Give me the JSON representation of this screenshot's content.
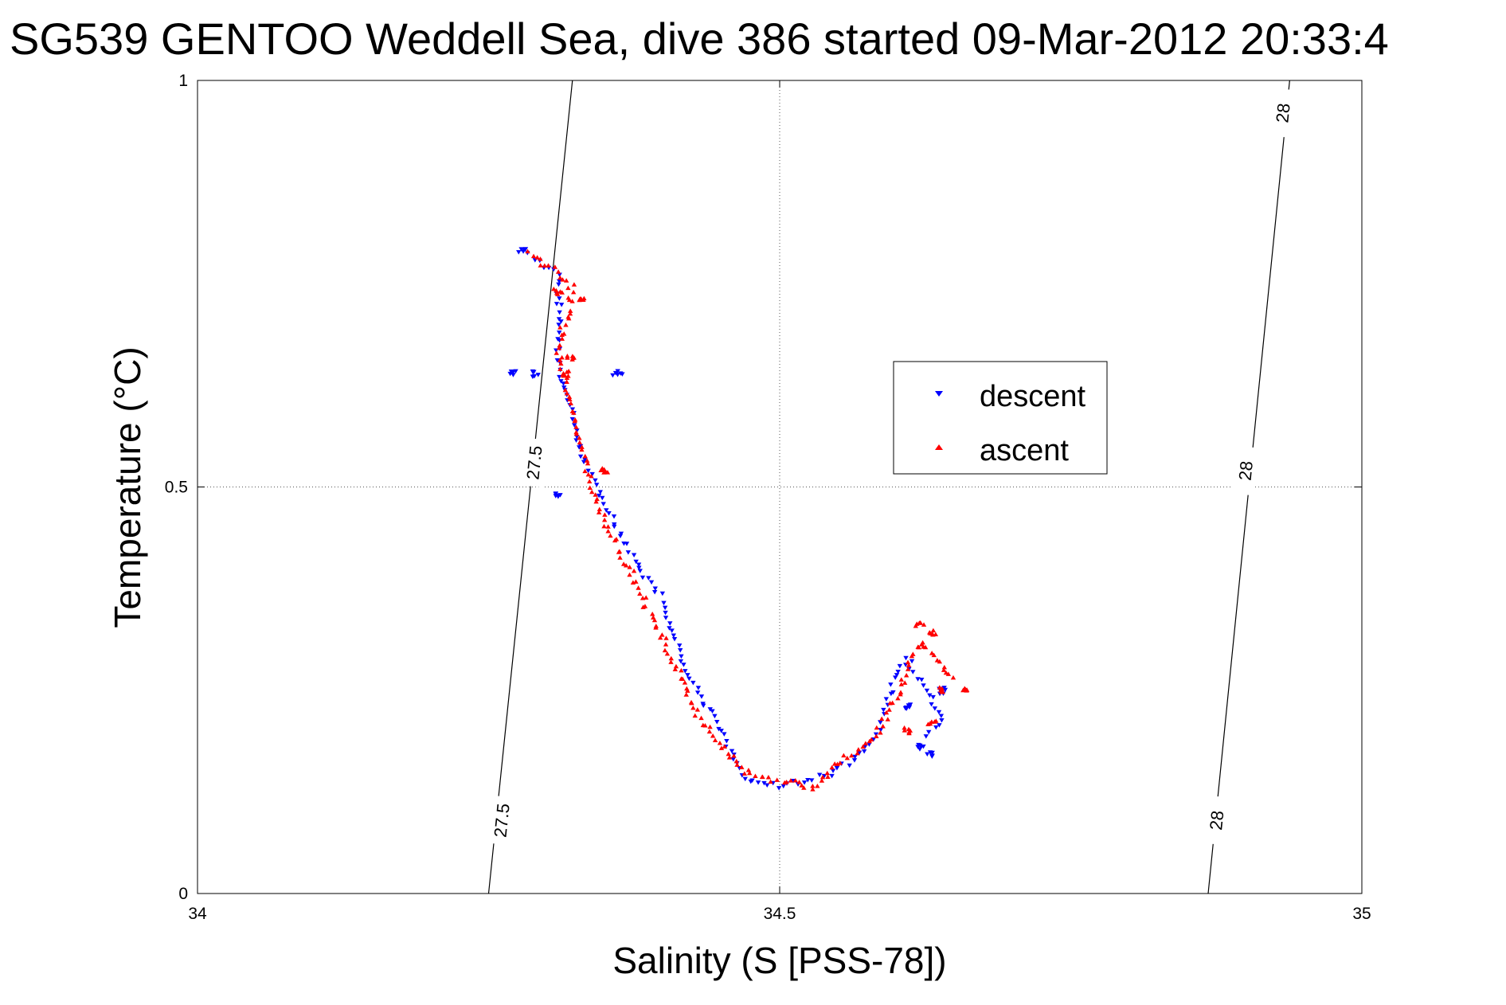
{
  "chart_data": {
    "type": "scatter",
    "title": "SG539 GENTOO Weddell Sea, dive 386 started 09-Mar-2012 20:33:4",
    "xlabel": "Salinity (S [PSS-78])",
    "ylabel": "Temperature (°C)",
    "xlim": [
      34,
      35
    ],
    "ylim": [
      0,
      1
    ],
    "x_ticks": [
      34,
      34.5,
      35
    ],
    "x_tick_labels": [
      "34",
      "34.5",
      "35"
    ],
    "y_ticks": [
      0,
      0.5,
      1
    ],
    "y_tick_labels": [
      "0",
      "0.5",
      "1"
    ],
    "grid": true,
    "legend_position": "center-right",
    "density_contours": [
      {
        "value": "27.5",
        "points": [
          [
            34.25,
            0
          ],
          [
            34.322,
            1
          ]
        ],
        "labels": [
          {
            "x": 34.261,
            "y": 0.09,
            "text": "27.5"
          },
          {
            "x": 34.289,
            "y": 0.53,
            "text": "27.5"
          }
        ]
      },
      {
        "value": "28",
        "points": [
          [
            34.868,
            0
          ],
          [
            34.938,
            1
          ]
        ],
        "labels": [
          {
            "x": 34.875,
            "y": 0.09,
            "text": "28"
          },
          {
            "x": 34.9,
            "y": 0.52,
            "text": "28"
          },
          {
            "x": 34.932,
            "y": 0.96,
            "text": "28"
          }
        ]
      }
    ],
    "series": [
      {
        "name": "descent",
        "color": "#0000ff",
        "marker": "triangle-down",
        "path": [
          [
            34.29,
            0.78
          ],
          [
            34.31,
            0.76
          ],
          [
            34.31,
            0.64
          ],
          [
            34.32,
            0.6
          ],
          [
            34.33,
            0.54
          ],
          [
            34.35,
            0.48
          ],
          [
            34.37,
            0.42
          ],
          [
            34.4,
            0.36
          ],
          [
            34.42,
            0.27
          ],
          [
            34.45,
            0.2
          ],
          [
            34.47,
            0.14
          ],
          [
            34.49,
            0.13
          ],
          [
            34.53,
            0.14
          ],
          [
            34.56,
            0.16
          ],
          [
            34.58,
            0.19
          ],
          [
            34.59,
            0.22
          ],
          [
            34.6,
            0.27
          ],
          [
            34.61,
            0.29
          ],
          [
            34.63,
            0.24
          ],
          [
            34.64,
            0.21
          ],
          [
            34.62,
            0.19
          ]
        ],
        "extra_points": [
          [
            34.27,
            0.64
          ],
          [
            34.29,
            0.64
          ],
          [
            34.31,
            0.49
          ],
          [
            34.36,
            0.64
          ],
          [
            34.28,
            0.79
          ],
          [
            34.62,
            0.18
          ],
          [
            34.63,
            0.17
          ],
          [
            34.61,
            0.23
          ],
          [
            34.64,
            0.25
          ]
        ]
      },
      {
        "name": "ascent",
        "color": "#ff0000",
        "marker": "triangle-up",
        "path": [
          [
            34.284,
            0.79
          ],
          [
            34.32,
            0.75
          ],
          [
            34.32,
            0.72
          ],
          [
            34.31,
            0.67
          ],
          [
            34.32,
            0.6
          ],
          [
            34.33,
            0.55
          ],
          [
            34.34,
            0.49
          ],
          [
            34.36,
            0.43
          ],
          [
            34.38,
            0.37
          ],
          [
            34.4,
            0.31
          ],
          [
            34.43,
            0.22
          ],
          [
            34.45,
            0.18
          ],
          [
            34.47,
            0.15
          ],
          [
            34.49,
            0.14
          ],
          [
            34.51,
            0.14
          ],
          [
            34.53,
            0.13
          ],
          [
            34.55,
            0.16
          ],
          [
            34.58,
            0.19
          ],
          [
            34.6,
            0.24
          ],
          [
            34.61,
            0.28
          ],
          [
            34.62,
            0.31
          ],
          [
            34.64,
            0.28
          ],
          [
            34.65,
            0.26
          ]
        ],
        "extra_points": [
          [
            34.31,
            0.74
          ],
          [
            34.33,
            0.73
          ],
          [
            34.32,
            0.66
          ],
          [
            34.315,
            0.64
          ],
          [
            34.35,
            0.52
          ],
          [
            34.62,
            0.33
          ],
          [
            34.63,
            0.32
          ],
          [
            34.63,
            0.21
          ],
          [
            34.64,
            0.25
          ],
          [
            34.66,
            0.25
          ],
          [
            34.61,
            0.2
          ]
        ]
      }
    ]
  }
}
